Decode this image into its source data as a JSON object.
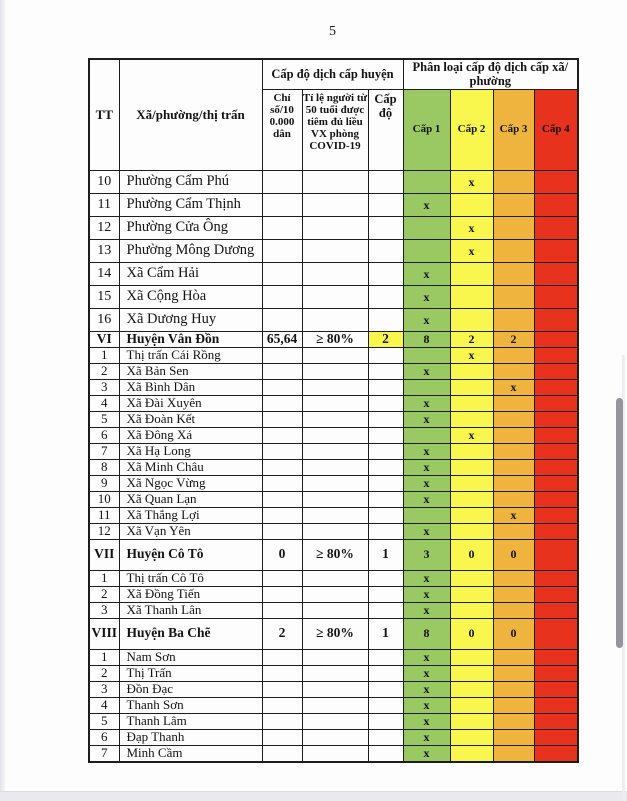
{
  "page": {
    "number": "5"
  },
  "table": {
    "headers": {
      "tt": "TT",
      "name": "Xã/phường/thị trấn",
      "district_group": "Cấp độ dịch cấp huyện",
      "ward_group": "Phân loại cấp độ dịch cấp xã/ phường",
      "index_col": "Chỉ số/10 0.000 dân",
      "vaccine_col": "Tỉ lệ người từ 50 tuổi được tiêm đủ liều VX phòng COVID-19",
      "level_col": "Cấp độ",
      "levels": [
        "Cấp 1",
        "Cấp 2",
        "Cấp 3",
        "Cấp 4"
      ]
    },
    "level_colors": {
      "level1": "#9ac964",
      "level2": "#f9f74e",
      "level3": "#eeb43d",
      "level4": "#e7321e"
    },
    "rows": [
      {
        "tt": "10",
        "name": "Phường Cẩm Phú",
        "l2": "x",
        "kind": "ward-lg"
      },
      {
        "tt": "11",
        "name": "Phường Cẩm Thịnh",
        "l1": "x",
        "kind": "ward-lg"
      },
      {
        "tt": "12",
        "name": "Phường Cửa Ông",
        "l2": "x",
        "kind": "ward-lg"
      },
      {
        "tt": "13",
        "name": "Phường Mông Dương",
        "l2": "x",
        "kind": "ward-lg"
      },
      {
        "tt": "14",
        "name": "Xã Cẩm Hải",
        "l1": "x",
        "kind": "ward-lg"
      },
      {
        "tt": "15",
        "name": "Xã Cộng Hòa",
        "l1": "x",
        "kind": "ward-lg"
      },
      {
        "tt": "16",
        "name": "Xã Dương Huy",
        "l1": "x",
        "kind": "ward-lg"
      },
      {
        "tt": "VI",
        "name": "Huyện Vân Đồn",
        "index": "65,64",
        "vaccine": "≥ 80%",
        "level": "2",
        "level_highlight": true,
        "l1": "8",
        "l2": "2",
        "l3": "2",
        "kind": "district-sm"
      },
      {
        "tt": "1",
        "name": "Thị trấn Cái Rồng",
        "l2": "x",
        "kind": "ward-sm"
      },
      {
        "tt": "2",
        "name": "Xã Bản Sen",
        "l1": "x",
        "kind": "ward-sm"
      },
      {
        "tt": "3",
        "name": "Xã Bình Dân",
        "l3": "x",
        "kind": "ward-sm"
      },
      {
        "tt": "4",
        "name": "Xã Đài Xuyên",
        "l1": "x",
        "kind": "ward-sm"
      },
      {
        "tt": "5",
        "name": "Xã Đoàn Kết",
        "l1": "x",
        "kind": "ward-sm"
      },
      {
        "tt": "6",
        "name": "Xã Đông Xá",
        "l2": "x",
        "kind": "ward-sm"
      },
      {
        "tt": "7",
        "name": "Xã Hạ Long",
        "l1": "x",
        "kind": "ward-sm"
      },
      {
        "tt": "8",
        "name": "Xã Minh Châu",
        "l1": "x",
        "kind": "ward-sm"
      },
      {
        "tt": "9",
        "name": "Xã Ngọc Vừng",
        "l1": "x",
        "kind": "ward-sm"
      },
      {
        "tt": "10",
        "name": "Xã Quan Lạn",
        "l1": "x",
        "kind": "ward-sm"
      },
      {
        "tt": "11",
        "name": "Xã Thắng Lợi",
        "l3": "x",
        "kind": "ward-sm"
      },
      {
        "tt": "12",
        "name": "Xã Vạn Yên",
        "l1": "x",
        "kind": "ward-sm"
      },
      {
        "tt": "VII",
        "name": "Huyện Cô Tô",
        "index": "0",
        "vaccine": "≥ 80%",
        "level": "1",
        "l1": "3",
        "l2": "0",
        "l3": "0",
        "kind": "district-lg"
      },
      {
        "tt": "1",
        "name": "Thị trấn Cô Tô",
        "l1": "x",
        "kind": "ward-sm"
      },
      {
        "tt": "2",
        "name": "Xã Đồng Tiến",
        "l1": "x",
        "kind": "ward-sm"
      },
      {
        "tt": "3",
        "name": "Xã Thanh Lân",
        "l1": "x",
        "kind": "ward-sm"
      },
      {
        "tt": "VIII",
        "name": "Huyện Ba Chẽ",
        "index": "2",
        "vaccine": "≥ 80%",
        "level": "1",
        "l1": "8",
        "l2": "0",
        "l3": "0",
        "kind": "district-lg"
      },
      {
        "tt": "1",
        "name": "Nam Sơn",
        "l1": "x",
        "kind": "ward-sm"
      },
      {
        "tt": "2",
        "name": "Thị Trấn",
        "l1": "x",
        "kind": "ward-sm"
      },
      {
        "tt": "3",
        "name": "Đồn Đạc",
        "l1": "x",
        "kind": "ward-sm"
      },
      {
        "tt": "4",
        "name": "Thanh Sơn",
        "l1": "x",
        "kind": "ward-sm"
      },
      {
        "tt": "5",
        "name": "Thanh Lâm",
        "l1": "x",
        "kind": "ward-sm"
      },
      {
        "tt": "6",
        "name": "Đạp Thanh",
        "l1": "x",
        "kind": "ward-sm"
      },
      {
        "tt": "7",
        "name": "Minh Cầm",
        "l1": "x",
        "kind": "ward-sm"
      }
    ]
  }
}
